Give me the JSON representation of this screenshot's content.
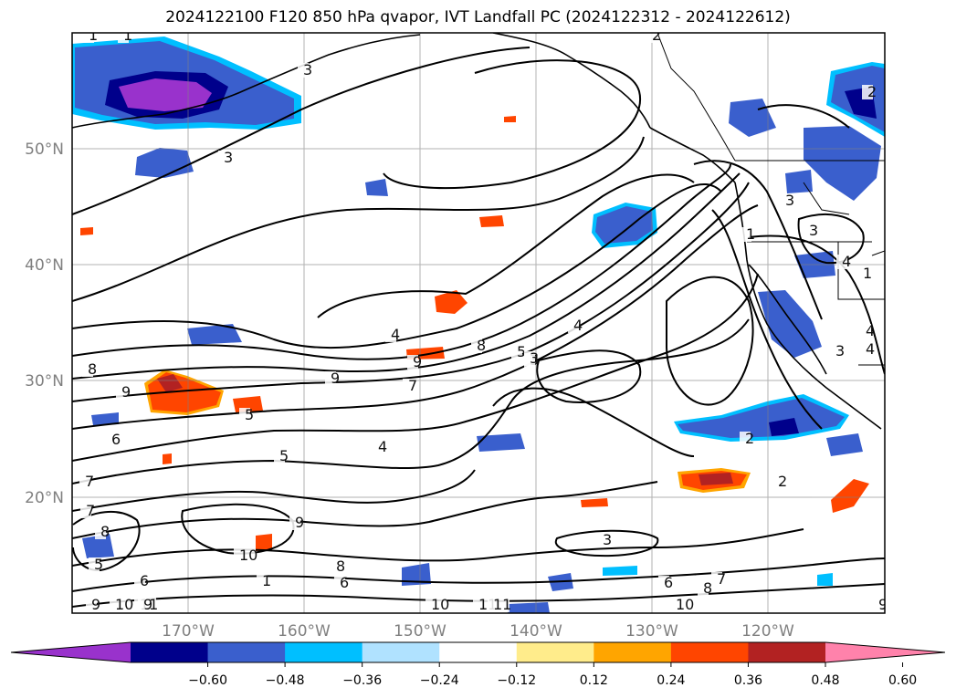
{
  "title": "2024122100 F120 850 hPa qvapor, IVT Landfall PC (2024122312 - 2024122612)",
  "map": {
    "projection": "cylindrical",
    "lon_range": [
      -180,
      -110
    ],
    "lat_range": [
      10,
      60
    ],
    "grid": true,
    "lat_labels": [
      "50°N",
      "40°N",
      "30°N",
      "20°N"
    ],
    "lon_labels": [
      "170°W",
      "160°W",
      "150°W",
      "140°W",
      "130°W",
      "120°W"
    ],
    "contour_labels": [
      "1",
      "1",
      "2",
      "3",
      "2",
      "3",
      "3",
      "4",
      "1",
      "3",
      "1",
      "4",
      "4",
      "8",
      "9",
      "7",
      "9",
      "5",
      "3",
      "4",
      "8",
      "9",
      "9",
      "6",
      "5",
      "5",
      "4",
      "2",
      "2",
      "9",
      "7",
      "8",
      "5",
      "1",
      "6",
      "10",
      "8",
      "6",
      "7",
      "3",
      "6",
      "7",
      "8",
      "10",
      "10",
      "11",
      "9",
      "9",
      "10",
      "11",
      "11",
      "3",
      "3",
      "4"
    ]
  },
  "colorbar": {
    "colors": [
      "#9932cc",
      "#00008b",
      "#3a5fcd",
      "#00bfff",
      "#b0e2ff",
      "#ffffff",
      "#ffec8b",
      "#ffa500",
      "#ff4500",
      "#b22222",
      "#ff82ab"
    ],
    "tick_labels": [
      "−0.60",
      "−0.48",
      "−0.36",
      "−0.24",
      "−0.12",
      "0.12",
      "0.24",
      "0.36",
      "0.48",
      "0.60"
    ],
    "extend": "both"
  }
}
